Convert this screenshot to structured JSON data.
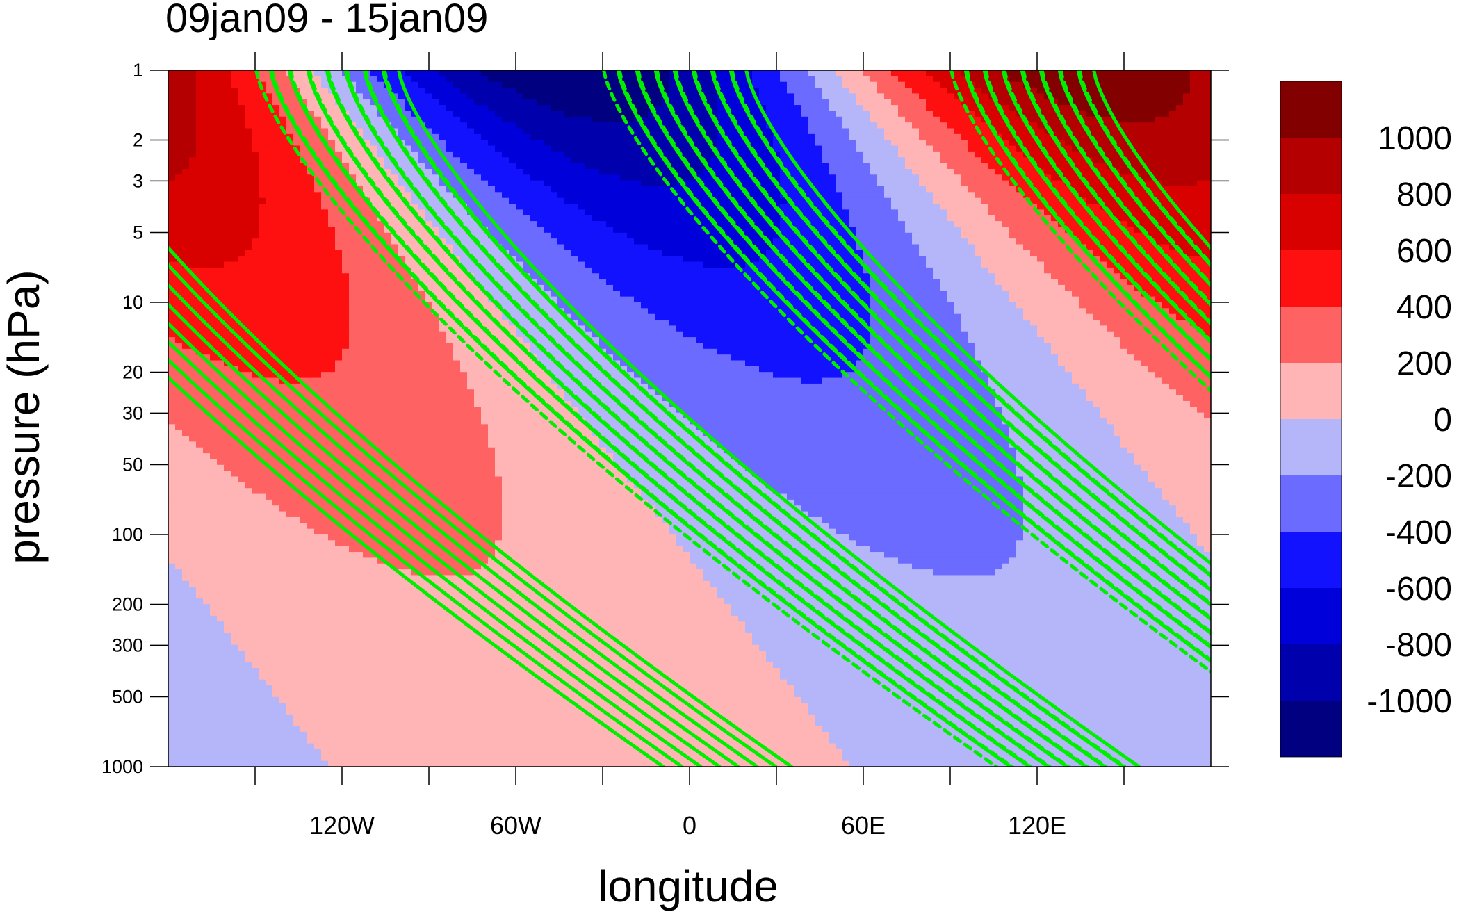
{
  "chart_data": {
    "type": "heatmap",
    "title": "09jan09 - 15jan09",
    "xlabel": "longitude",
    "ylabel": "pressure (hPa)",
    "x_range": [
      -180,
      180
    ],
    "y_range": [
      1000,
      1
    ],
    "y_scale": "log",
    "x_ticks": [
      {
        "value": -120,
        "label": "120W"
      },
      {
        "value": -60,
        "label": "60W"
      },
      {
        "value": 0,
        "label": "0"
      },
      {
        "value": 60,
        "label": "60E"
      },
      {
        "value": 120,
        "label": "120E"
      }
    ],
    "y_ticks": [
      {
        "value": 1,
        "label": "1"
      },
      {
        "value": 2,
        "label": "2"
      },
      {
        "value": 3,
        "label": "3"
      },
      {
        "value": 5,
        "label": "5"
      },
      {
        "value": 10,
        "label": "10"
      },
      {
        "value": 20,
        "label": "20"
      },
      {
        "value": 30,
        "label": "30"
      },
      {
        "value": 50,
        "label": "50"
      },
      {
        "value": 100,
        "label": "100"
      },
      {
        "value": 200,
        "label": "200"
      },
      {
        "value": 300,
        "label": "300"
      },
      {
        "value": 500,
        "label": "500"
      },
      {
        "value": 1000,
        "label": "1000"
      }
    ],
    "colorbar": {
      "levels": [
        -1200,
        -1000,
        -800,
        -600,
        -400,
        -200,
        0,
        200,
        400,
        600,
        800,
        1000,
        1200
      ],
      "labels": [
        "1000",
        "800",
        "600",
        "400",
        "200",
        "0",
        "-200",
        "-400",
        "-600",
        "-800",
        "-1000"
      ],
      "colors": [
        "#830000",
        "#b40000",
        "#d90000",
        "#ff1010",
        "#ff6262",
        "#ffb5b5",
        "#b5b5fa",
        "#6b6bff",
        "#1212ff",
        "#0000da",
        "#0000ad",
        "#000080"
      ]
    },
    "field": {
      "description": "zonal wavenumber-1 anomaly, amplitude grows with height, phase tilts westward with height",
      "peak_positive": {
        "lon": 140,
        "p": 1,
        "value": 1150
      },
      "peak_negative": {
        "lon": -40,
        "p": 1,
        "value": -1150
      }
    },
    "overlay": {
      "color": "#00ee00",
      "style": "solid = positive, dashed = negative",
      "wavenumber": 3
    }
  }
}
